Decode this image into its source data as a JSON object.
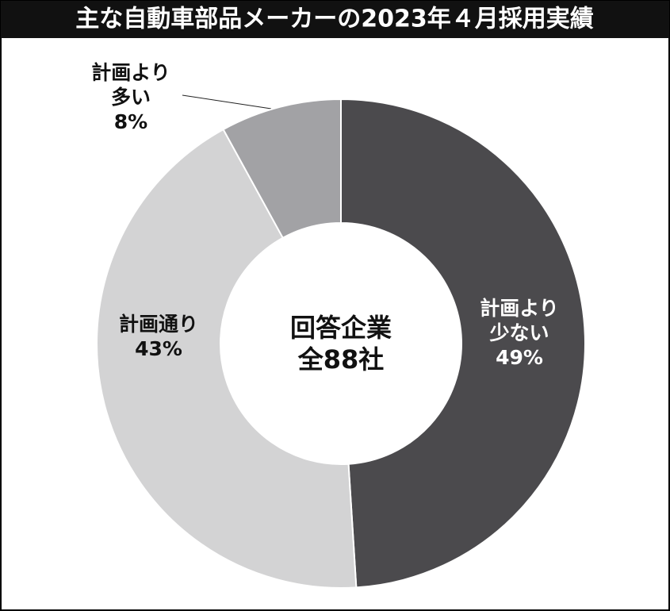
{
  "chart_data": {
    "type": "donut",
    "title": "主な自動車部品メーカーの2023年４月採用実績",
    "center_label": [
      "回答企業",
      "全88社"
    ],
    "categories": [
      [
        "計画より",
        "少ない"
      ],
      [
        "計画通り"
      ],
      [
        "計画より",
        "多い"
      ]
    ],
    "values": [
      49,
      43,
      8
    ],
    "value_labels": [
      "49%",
      "43%",
      "8%"
    ],
    "colors": [
      "#4b4a4d",
      "#d3d3d4",
      "#a2a2a5"
    ]
  }
}
